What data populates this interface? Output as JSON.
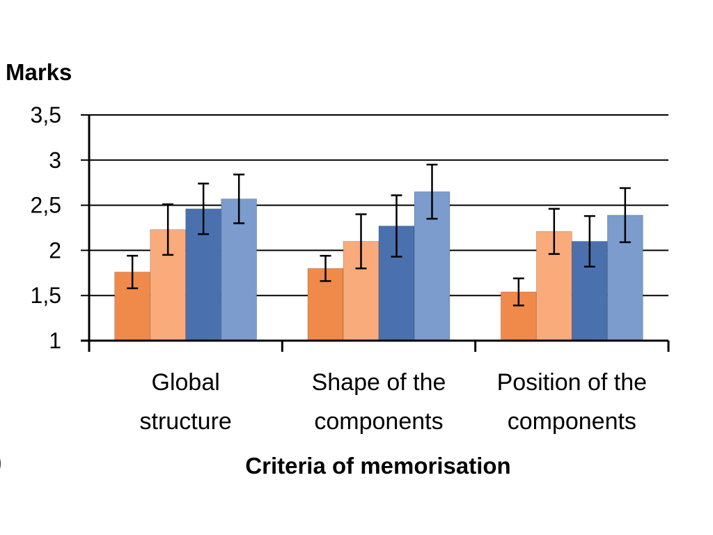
{
  "chart_data": {
    "type": "bar",
    "ylabel": "Marks",
    "xlabel": "Criteria of memorisation",
    "ylim": [
      1,
      3.5
    ],
    "yticks": [
      "1",
      "1,5",
      "2",
      "2,5",
      "3",
      "3,5"
    ],
    "ytick_values": [
      1,
      1.5,
      2,
      2.5,
      3,
      3.5
    ],
    "grid": true,
    "categories": [
      [
        "Global",
        "structure"
      ],
      [
        "Shape of the",
        "components"
      ],
      [
        "Position of the",
        "components"
      ]
    ],
    "series": [
      {
        "color": "#F08A4B",
        "values": [
          1.76,
          1.8,
          1.54
        ],
        "errors": [
          0.18,
          0.14,
          0.15
        ]
      },
      {
        "color": "#F9AB7C",
        "values": [
          2.23,
          2.1,
          2.21
        ],
        "errors": [
          0.28,
          0.3,
          0.25
        ]
      },
      {
        "color": "#4A71AE",
        "values": [
          2.46,
          2.27,
          2.1
        ],
        "errors": [
          0.28,
          0.34,
          0.28
        ]
      },
      {
        "color": "#7B9CCC",
        "values": [
          2.57,
          2.65,
          2.39
        ],
        "errors": [
          0.27,
          0.3,
          0.3
        ]
      }
    ]
  },
  "corner_mark": ")"
}
